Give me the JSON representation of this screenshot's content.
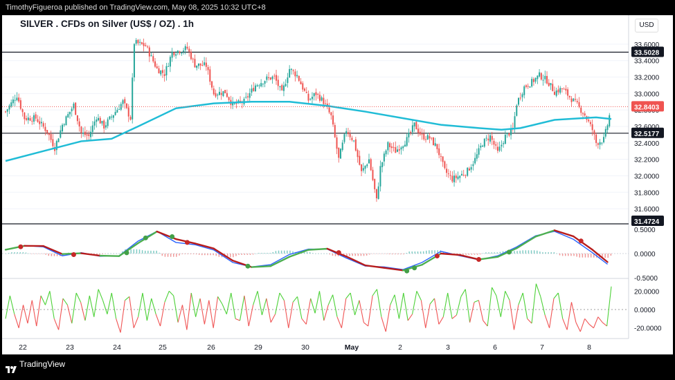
{
  "header": {
    "publish_text": "TimothyFigueroa published on TradingView.com, May 08, 2025 10:32 UTC+8"
  },
  "chart_header": {
    "title": "SILVER . CFDs on Silver (US$ / OZ) . 1h",
    "currency": "USD"
  },
  "footer": {
    "brand": "TradingView"
  },
  "colors": {
    "up": "#26a69a",
    "down": "#ef5350",
    "ma": "#20bcd6",
    "osc_fast": "#2962ff",
    "osc_slow_green": "#4caf50",
    "osc_slow_red": "#b71c1c",
    "rsi_up": "#4cd137",
    "rsi_down": "#f05454",
    "hline": "#131722",
    "current_price": "#ef5350"
  },
  "chart_data": [
    {
      "type": "candlestick",
      "title": "SILVER . CFDs on Silver (US$ / OZ) . 1h",
      "ylim": [
        31.5,
        33.7
      ],
      "y_ticks": [
        "33.6000",
        "33.4000",
        "33.2000",
        "33.0000",
        "32.8000",
        "32.6000",
        "32.4000",
        "32.2000",
        "32.0000",
        "31.8000",
        "31.6000"
      ],
      "x_labels": [
        "22",
        "23",
        "24",
        "25",
        "26",
        "29",
        "30",
        "May",
        "2",
        "3",
        "6",
        "7",
        "8"
      ],
      "horizontal_lines": [
        {
          "value": 33.5028,
          "label": "33.5028"
        },
        {
          "value": 32.5177,
          "label": "32.5177"
        },
        {
          "value": 31.4724,
          "label": "31.4724"
        }
      ],
      "current_price": {
        "value": 32.8403,
        "label": "32.8403"
      },
      "close_path": [
        [
          0,
          32.78
        ],
        [
          6,
          32.98
        ],
        [
          10,
          32.7
        ],
        [
          16,
          32.7
        ],
        [
          22,
          32.54
        ],
        [
          26,
          32.34
        ],
        [
          30,
          32.62
        ],
        [
          36,
          32.86
        ],
        [
          40,
          32.52
        ],
        [
          44,
          32.48
        ],
        [
          48,
          32.72
        ],
        [
          52,
          32.6
        ],
        [
          58,
          32.78
        ],
        [
          62,
          32.9
        ],
        [
          66,
          32.7
        ],
        [
          68,
          33.62
        ],
        [
          74,
          33.58
        ],
        [
          80,
          33.3
        ],
        [
          84,
          33.24
        ],
        [
          88,
          33.5
        ],
        [
          96,
          33.55
        ],
        [
          100,
          33.35
        ],
        [
          106,
          33.34
        ],
        [
          110,
          33.0
        ],
        [
          116,
          33.02
        ],
        [
          120,
          32.86
        ],
        [
          126,
          32.9
        ],
        [
          132,
          33.1
        ],
        [
          138,
          33.18
        ],
        [
          142,
          33.2
        ],
        [
          146,
          33.0
        ],
        [
          150,
          33.3
        ],
        [
          154,
          33.22
        ],
        [
          160,
          32.92
        ],
        [
          164,
          33.0
        ],
        [
          168,
          32.9
        ],
        [
          172,
          32.72
        ],
        [
          176,
          32.2
        ],
        [
          180,
          32.56
        ],
        [
          184,
          32.42
        ],
        [
          188,
          32.04
        ],
        [
          192,
          32.2
        ],
        [
          196,
          31.7
        ],
        [
          198,
          32.1
        ],
        [
          202,
          32.38
        ],
        [
          206,
          32.3
        ],
        [
          212,
          32.44
        ],
        [
          216,
          32.62
        ],
        [
          220,
          32.48
        ],
        [
          224,
          32.46
        ],
        [
          228,
          32.34
        ],
        [
          232,
          32.06
        ],
        [
          236,
          31.96
        ],
        [
          240,
          32.0
        ],
        [
          244,
          32.06
        ],
        [
          248,
          32.2
        ],
        [
          252,
          32.4
        ],
        [
          256,
          32.48
        ],
        [
          260,
          32.28
        ],
        [
          264,
          32.48
        ],
        [
          268,
          32.56
        ],
        [
          270,
          32.88
        ],
        [
          274,
          33.08
        ],
        [
          278,
          33.14
        ],
        [
          282,
          33.22
        ],
        [
          286,
          33.16
        ],
        [
          290,
          33.02
        ],
        [
          294,
          33.06
        ],
        [
          298,
          32.96
        ],
        [
          302,
          32.86
        ],
        [
          306,
          32.74
        ],
        [
          310,
          32.56
        ],
        [
          312,
          32.4
        ],
        [
          316,
          32.44
        ],
        [
          318,
          32.62
        ],
        [
          320,
          32.84
        ]
      ],
      "ma_path": [
        [
          0,
          32.18
        ],
        [
          20,
          32.3
        ],
        [
          40,
          32.42
        ],
        [
          56,
          32.45
        ],
        [
          70,
          32.6
        ],
        [
          90,
          32.82
        ],
        [
          110,
          32.88
        ],
        [
          130,
          32.9
        ],
        [
          150,
          32.9
        ],
        [
          170,
          32.85
        ],
        [
          190,
          32.78
        ],
        [
          210,
          32.7
        ],
        [
          230,
          32.62
        ],
        [
          250,
          32.58
        ],
        [
          262,
          32.56
        ],
        [
          272,
          32.58
        ],
        [
          290,
          32.68
        ],
        [
          304,
          32.7
        ],
        [
          312,
          32.71
        ],
        [
          320,
          32.69
        ]
      ]
    },
    {
      "type": "line",
      "series": [
        {
          "name": "fast"
        },
        {
          "name": "slow"
        },
        {
          "name": "histogram"
        }
      ],
      "ylim": [
        -0.5,
        0.5
      ],
      "y_ticks": [
        "0.5000",
        "0.0000",
        "-0.5000"
      ],
      "path": [
        [
          0,
          0.08
        ],
        [
          10,
          0.18
        ],
        [
          20,
          0.15
        ],
        [
          30,
          -0.05
        ],
        [
          40,
          0.02
        ],
        [
          50,
          -0.06
        ],
        [
          60,
          -0.05
        ],
        [
          70,
          0.28
        ],
        [
          80,
          0.5
        ],
        [
          90,
          0.25
        ],
        [
          100,
          0.2
        ],
        [
          110,
          0.08
        ],
        [
          120,
          -0.2
        ],
        [
          130,
          -0.3
        ],
        [
          140,
          -0.25
        ],
        [
          150,
          -0.02
        ],
        [
          160,
          0.1
        ],
        [
          170,
          0.1
        ],
        [
          180,
          -0.1
        ],
        [
          190,
          -0.28
        ],
        [
          200,
          -0.3
        ],
        [
          210,
          -0.36
        ],
        [
          220,
          -0.2
        ],
        [
          230,
          0.05
        ],
        [
          240,
          -0.05
        ],
        [
          250,
          -0.14
        ],
        [
          260,
          -0.05
        ],
        [
          270,
          0.15
        ],
        [
          280,
          0.4
        ],
        [
          290,
          0.5
        ],
        [
          300,
          0.32
        ],
        [
          310,
          0.02
        ],
        [
          318,
          -0.24
        ]
      ],
      "dots": [
        [
          8,
          "red"
        ],
        [
          36,
          "red"
        ],
        [
          64,
          "green"
        ],
        [
          74,
          "green"
        ],
        [
          88,
          "green"
        ],
        [
          96,
          "red"
        ],
        [
          128,
          "green"
        ],
        [
          176,
          "red"
        ],
        [
          212,
          "green"
        ],
        [
          216,
          "green"
        ],
        [
          228,
          "red"
        ],
        [
          250,
          "red"
        ],
        [
          266,
          "green"
        ],
        [
          304,
          "red"
        ]
      ]
    },
    {
      "type": "line",
      "ylim": [
        -30,
        30
      ],
      "y_ticks": [
        "20.0000",
        "0.0000",
        "-20.0000"
      ],
      "values": [
        -10,
        15,
        -5,
        -20,
        5,
        -15,
        10,
        -18,
        15,
        5,
        20,
        -10,
        -22,
        12,
        5,
        -15,
        18,
        8,
        -12,
        15,
        -8,
        22,
        10,
        -5,
        18,
        -10,
        -25,
        10,
        14,
        -20,
        -8,
        18,
        -12,
        12,
        -5,
        -18,
        8,
        20,
        15,
        -14,
        5,
        -22,
        18,
        -8,
        12,
        -16,
        10,
        -20,
        14,
        6,
        -5,
        18,
        -10,
        -12,
        15,
        -18,
        5,
        20,
        -6,
        12,
        -14,
        -5,
        18,
        10,
        -20,
        8,
        14,
        -10,
        -16,
        12,
        -4,
        20,
        -12,
        5,
        16,
        -8,
        -20,
        12,
        18,
        -6,
        10,
        -14,
        -18,
        15,
        22,
        -8,
        -24,
        5,
        16,
        -10,
        18,
        -12,
        -5,
        20,
        10,
        -20,
        6,
        12,
        -16,
        -8,
        18,
        -10,
        -6,
        14,
        22,
        -14,
        8,
        10,
        -12,
        -18,
        24,
        15,
        -8,
        20,
        10,
        -22,
        5,
        18,
        -10,
        -15,
        28,
        14,
        -6,
        -20,
        12,
        18,
        -10,
        -22,
        8,
        -14,
        -24,
        -10,
        -16,
        -20,
        -8,
        -14,
        -18,
        25
      ]
    }
  ]
}
